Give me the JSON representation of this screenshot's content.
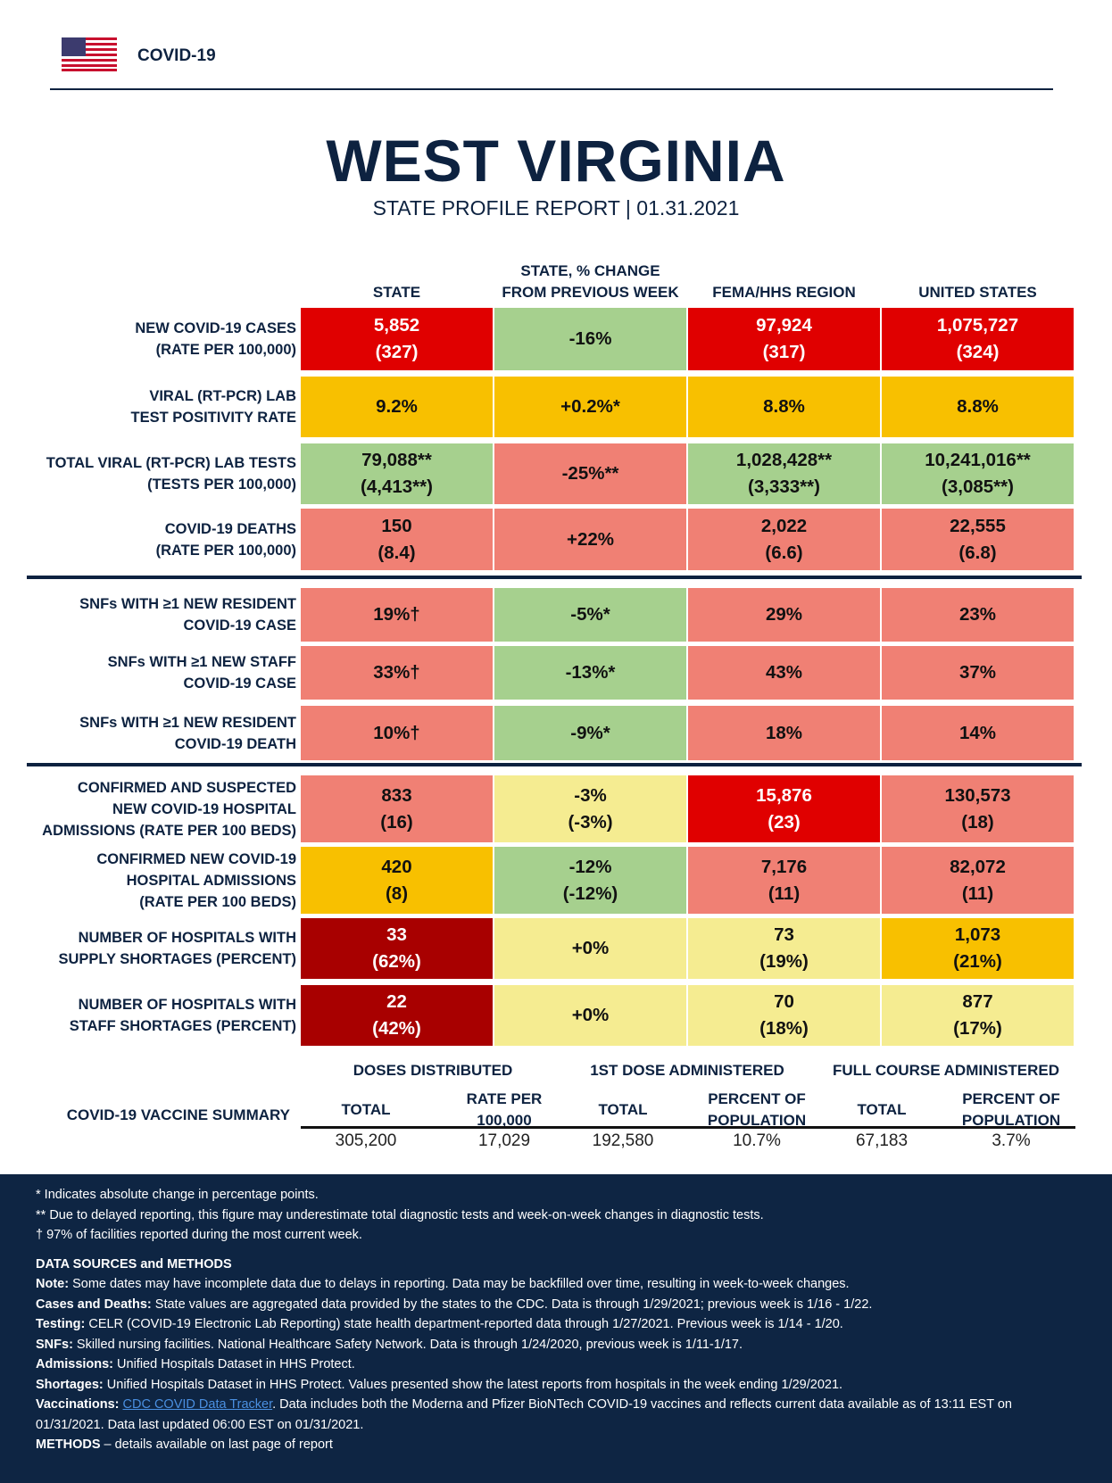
{
  "header": {
    "brand": "COVID-19",
    "flag_icon": "us-flag-icon",
    "title": "WEST VIRGINIA",
    "subtitle": "STATE PROFILE REPORT | 01.31.2021"
  },
  "colors": {
    "navy": "#0d2240",
    "red": "#e00000",
    "dark_red": "#a80000",
    "salmon": "#f08074",
    "orange": "#f8c000",
    "light_yellow": "#f5ec91",
    "green": "#a6d08e"
  },
  "columns": [
    {
      "line1": "",
      "line2": "STATE"
    },
    {
      "line1": "STATE, % CHANGE",
      "line2": "FROM PREVIOUS WEEK"
    },
    {
      "line1": "",
      "line2": "FEMA/HHS REGION"
    },
    {
      "line1": "",
      "line2": "UNITED STATES"
    }
  ],
  "rows": [
    {
      "label": [
        "NEW COVID-19 CASES",
        "(RATE PER 100,000)"
      ],
      "cells": [
        {
          "lines": [
            "5,852",
            "(327)"
          ],
          "color": "red"
        },
        {
          "lines": [
            "-16%"
          ],
          "color": "green"
        },
        {
          "lines": [
            "97,924",
            "(317)"
          ],
          "color": "red"
        },
        {
          "lines": [
            "1,075,727",
            "(324)"
          ],
          "color": "red"
        }
      ]
    },
    {
      "label": [
        "VIRAL (RT-PCR) LAB",
        "TEST POSITIVITY RATE"
      ],
      "cells": [
        {
          "lines": [
            "9.2%"
          ],
          "color": "orange"
        },
        {
          "lines": [
            "+0.2%*"
          ],
          "color": "orange"
        },
        {
          "lines": [
            "8.8%"
          ],
          "color": "orange"
        },
        {
          "lines": [
            "8.8%"
          ],
          "color": "orange"
        }
      ]
    },
    {
      "label": [
        "TOTAL VIRAL (RT-PCR) LAB TESTS",
        "(TESTS PER 100,000)"
      ],
      "cells": [
        {
          "lines": [
            "79,088**",
            "(4,413**)"
          ],
          "color": "green"
        },
        {
          "lines": [
            "-25%**"
          ],
          "color": "salmon"
        },
        {
          "lines": [
            "1,028,428**",
            "(3,333**)"
          ],
          "color": "green"
        },
        {
          "lines": [
            "10,241,016**",
            "(3,085**)"
          ],
          "color": "green"
        }
      ]
    },
    {
      "label": [
        "COVID-19 DEATHS",
        "(RATE PER 100,000)"
      ],
      "cells": [
        {
          "lines": [
            "150",
            "(8.4)"
          ],
          "color": "salmon"
        },
        {
          "lines": [
            "+22%"
          ],
          "color": "salmon"
        },
        {
          "lines": [
            "2,022",
            "(6.6)"
          ],
          "color": "salmon"
        },
        {
          "lines": [
            "22,555",
            "(6.8)"
          ],
          "color": "salmon"
        }
      ]
    },
    {
      "label": [
        "SNFs WITH ≥1 NEW RESIDENT",
        "COVID-19 CASE"
      ],
      "cells": [
        {
          "lines": [
            "19%†"
          ],
          "color": "salmon"
        },
        {
          "lines": [
            "-5%*"
          ],
          "color": "green"
        },
        {
          "lines": [
            "29%"
          ],
          "color": "salmon"
        },
        {
          "lines": [
            "23%"
          ],
          "color": "salmon"
        }
      ]
    },
    {
      "label": [
        "SNFs WITH ≥1 NEW STAFF",
        "COVID-19 CASE"
      ],
      "cells": [
        {
          "lines": [
            "33%†"
          ],
          "color": "salmon"
        },
        {
          "lines": [
            "-13%*"
          ],
          "color": "green"
        },
        {
          "lines": [
            "43%"
          ],
          "color": "salmon"
        },
        {
          "lines": [
            "37%"
          ],
          "color": "salmon"
        }
      ]
    },
    {
      "label": [
        "SNFs WITH ≥1 NEW RESIDENT",
        "COVID-19 DEATH"
      ],
      "cells": [
        {
          "lines": [
            "10%†"
          ],
          "color": "salmon"
        },
        {
          "lines": [
            "-9%*"
          ],
          "color": "green"
        },
        {
          "lines": [
            "18%"
          ],
          "color": "salmon"
        },
        {
          "lines": [
            "14%"
          ],
          "color": "salmon"
        }
      ]
    },
    {
      "label": [
        "CONFIRMED AND SUSPECTED",
        "NEW COVID-19 HOSPITAL",
        "ADMISSIONS (RATE PER 100 BEDS)"
      ],
      "cells": [
        {
          "lines": [
            "833",
            "(16)"
          ],
          "color": "salmon"
        },
        {
          "lines": [
            "-3%",
            "(-3%)"
          ],
          "color": "light_yellow"
        },
        {
          "lines": [
            "15,876",
            "(23)"
          ],
          "color": "red"
        },
        {
          "lines": [
            "130,573",
            "(18)"
          ],
          "color": "salmon"
        }
      ]
    },
    {
      "label": [
        "CONFIRMED NEW COVID-19",
        "HOSPITAL ADMISSIONS",
        "(RATE PER 100 BEDS)"
      ],
      "cells": [
        {
          "lines": [
            "420",
            "(8)"
          ],
          "color": "orange"
        },
        {
          "lines": [
            "-12%",
            "(-12%)"
          ],
          "color": "green"
        },
        {
          "lines": [
            "7,176",
            "(11)"
          ],
          "color": "salmon"
        },
        {
          "lines": [
            "82,072",
            "(11)"
          ],
          "color": "salmon"
        }
      ]
    },
    {
      "label": [
        "NUMBER OF HOSPITALS WITH",
        "SUPPLY SHORTAGES (PERCENT)"
      ],
      "cells": [
        {
          "lines": [
            "33",
            "(62%)"
          ],
          "color": "dark_red"
        },
        {
          "lines": [
            "+0%"
          ],
          "color": "light_yellow"
        },
        {
          "lines": [
            "73",
            "(19%)"
          ],
          "color": "light_yellow"
        },
        {
          "lines": [
            "1,073",
            "(21%)"
          ],
          "color": "orange"
        }
      ]
    },
    {
      "label": [
        "NUMBER OF HOSPITALS WITH",
        "STAFF SHORTAGES (PERCENT)"
      ],
      "cells": [
        {
          "lines": [
            "22",
            "(42%)"
          ],
          "color": "dark_red"
        },
        {
          "lines": [
            "+0%"
          ],
          "color": "light_yellow"
        },
        {
          "lines": [
            "70",
            "(18%)"
          ],
          "color": "light_yellow"
        },
        {
          "lines": [
            "877",
            "(17%)"
          ],
          "color": "light_yellow"
        }
      ]
    }
  ],
  "vaccine": {
    "label": "COVID-19 VACCINE SUMMARY",
    "groups": [
      "DOSES DISTRIBUTED",
      "1ST DOSE ADMINISTERED",
      "FULL COURSE ADMINISTERED"
    ],
    "subheaders": [
      [
        "TOTAL"
      ],
      [
        "RATE PER",
        "100,000"
      ],
      [
        "TOTAL"
      ],
      [
        "PERCENT OF",
        "POPULATION"
      ],
      [
        "TOTAL"
      ],
      [
        "PERCENT OF",
        "POPULATION"
      ]
    ],
    "values": [
      "305,200",
      "17,029",
      "192,580",
      "10.7%",
      "67,183",
      "3.7%"
    ]
  },
  "footer": {
    "notes": [
      "* Indicates absolute change in percentage points.",
      "** Due to delayed reporting, this figure may underestimate total diagnostic tests and week-on-week changes in diagnostic tests.",
      "† 97% of facilities reported during the most current week."
    ],
    "sources_title": "DATA SOURCES and METHODS",
    "sources": [
      {
        "key": "Note:",
        "text": " Some dates may have incomplete data due to delays in reporting. Data may be backfilled over time, resulting in week-to-week changes."
      },
      {
        "key": "Cases and Deaths:",
        "text": " State values are aggregated data provided by the states to the CDC. Data is through 1/29/2021; previous week is 1/16 - 1/22."
      },
      {
        "key": "Testing:",
        "text": " CELR (COVID-19 Electronic Lab Reporting) state health department-reported data through 1/27/2021. Previous week is 1/14 - 1/20."
      },
      {
        "key": "SNFs:",
        "text": " Skilled nursing facilities. National Healthcare Safety Network. Data is through 1/24/2020, previous week is 1/11-1/17."
      },
      {
        "key": "Admissions:",
        "text": " Unified Hospitals Dataset in HHS Protect."
      },
      {
        "key": "Shortages:",
        "text": " Unified Hospitals Dataset in HHS Protect. Values presented show the latest reports from hospitals in the week ending 1/29/2021."
      }
    ],
    "vaccinations": {
      "key": "Vaccinations:",
      "link": "CDC COVID Data Tracker",
      "text": ". Data includes both the Moderna and Pfizer BioNTech COVID-19 vaccines and reflects current data available as of 13:11 EST on 01/31/2021. Data last updated 06:00 EST on 01/31/2021."
    },
    "methods": {
      "key": "METHODS",
      "text": " – details available on last page of report"
    }
  }
}
